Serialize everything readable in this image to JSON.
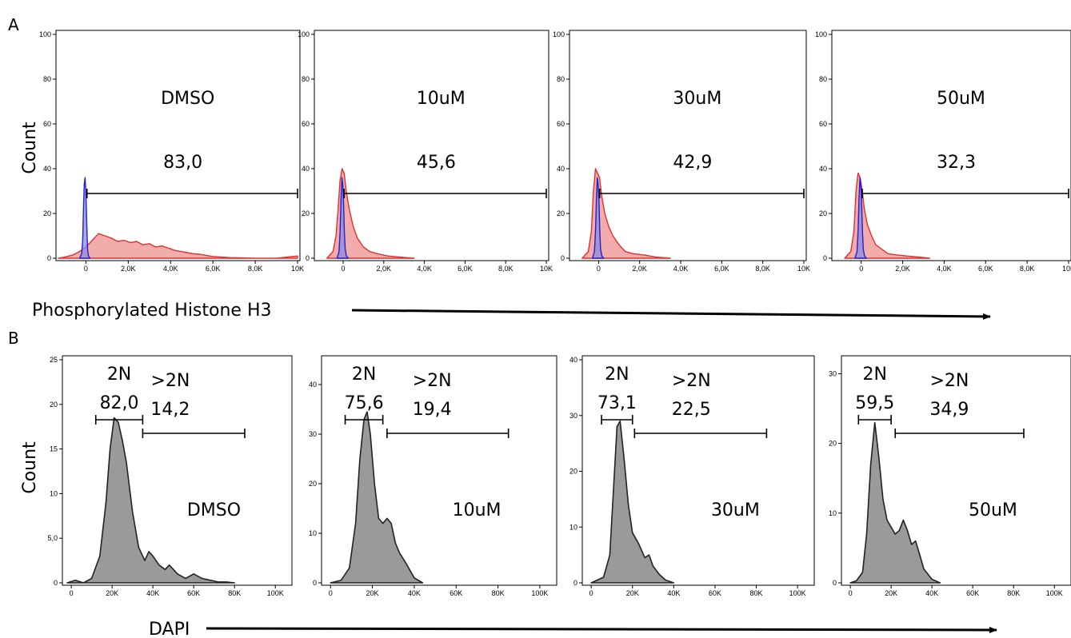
{
  "figure": {
    "panel_a_letter": "A",
    "panel_b_letter": "B",
    "panel_a_ylabel": "Count",
    "panel_b_ylabel": "Count",
    "panel_a_xlabel": "Phosphorylated Histone H3",
    "panel_b_xlabel": "DAPI"
  },
  "colors": {
    "control_fill": "#f1a3a3",
    "control_line": "#e03030",
    "isotype_fill": "#8f8ae0",
    "isotype_line": "#2222cc",
    "dapi_fill": "#9a9a9a",
    "dapi_line": "#222222"
  },
  "chart_data": [
    {
      "type": "area",
      "panel": "A",
      "condition": "DMSO",
      "gates": [
        {
          "percent": "83,0",
          "range": [
            50,
            10000
          ]
        }
      ],
      "xlim": [
        -1300,
        10000
      ],
      "ylim": [
        0,
        100
      ],
      "xticks": [
        0,
        2000,
        4000,
        6000,
        8000,
        10000
      ],
      "xtick_labels": [
        "0",
        "2,0K",
        "4,0K",
        "6,0K",
        "8,0K",
        "10K"
      ],
      "yticks": [
        0,
        20,
        40,
        60,
        80,
        100
      ],
      "ytick_labels": [
        "0",
        "20",
        "40",
        "60",
        "80",
        "100"
      ],
      "series": [
        {
          "role": "sample",
          "x": [
            -1300,
            -1000,
            -600,
            -300,
            0,
            300,
            600,
            900,
            1200,
            1500,
            1800,
            2100,
            2400,
            2700,
            3000,
            3300,
            3600,
            3900,
            4200,
            4500,
            4800,
            5100,
            5400,
            5700,
            6000,
            6400,
            6800,
            7200,
            7600,
            8000,
            9000,
            10000
          ],
          "y": [
            0,
            0.5,
            1.5,
            3,
            5,
            8,
            11,
            10,
            9,
            7.5,
            8,
            7,
            7.5,
            6,
            6.5,
            5,
            5.5,
            4.5,
            3.5,
            3,
            2.5,
            2,
            1.8,
            1.2,
            0.8,
            0.5,
            0.3,
            0.2,
            0.1,
            0,
            0,
            1
          ]
        },
        {
          "role": "isotype",
          "x": [
            -300,
            -200,
            -150,
            -120,
            -80,
            -40,
            0,
            40,
            80,
            120,
            200
          ],
          "y": [
            0,
            2,
            8,
            20,
            33,
            36,
            30,
            15,
            4,
            1,
            0
          ]
        }
      ]
    },
    {
      "type": "area",
      "panel": "A",
      "condition": "10uM",
      "gates": [
        {
          "percent": "45,6",
          "range": [
            50,
            10000
          ]
        }
      ],
      "xlim": [
        -1300,
        10000
      ],
      "ylim": [
        0,
        100
      ],
      "xticks": [
        0,
        2000,
        4000,
        6000,
        8000,
        10000
      ],
      "xtick_labels": [
        "0",
        "2,0K",
        "4,0K",
        "6,0K",
        "8,0K",
        "10K"
      ],
      "yticks": [
        0,
        20,
        40,
        60,
        80,
        100
      ],
      "ytick_labels": [
        "0",
        "20",
        "40",
        "60",
        "80",
        "100"
      ],
      "series": [
        {
          "role": "sample",
          "x": [
            -800,
            -500,
            -350,
            -250,
            -150,
            -50,
            50,
            150,
            300,
            500,
            700,
            1000,
            1300,
            1700,
            2200,
            2800,
            3500
          ],
          "y": [
            0,
            3,
            10,
            22,
            35,
            40,
            38,
            30,
            22,
            14,
            9,
            5,
            3,
            2,
            1,
            0.5,
            0
          ]
        },
        {
          "role": "isotype",
          "x": [
            -300,
            -200,
            -150,
            -100,
            -60,
            -20,
            20,
            60,
            100,
            160,
            250
          ],
          "y": [
            0,
            3,
            12,
            28,
            36,
            33,
            25,
            12,
            4,
            1,
            0
          ]
        }
      ]
    },
    {
      "type": "area",
      "panel": "A",
      "condition": "30uM",
      "gates": [
        {
          "percent": "42,9",
          "range": [
            50,
            10000
          ]
        }
      ],
      "xlim": [
        -1300,
        10000
      ],
      "ylim": [
        0,
        100
      ],
      "xticks": [
        0,
        2000,
        4000,
        6000,
        8000,
        10000
      ],
      "xtick_labels": [
        "0",
        "2,0K",
        "4,0K",
        "6,0K",
        "8,0K",
        "10K"
      ],
      "yticks": [
        0,
        20,
        40,
        60,
        80,
        100
      ],
      "ytick_labels": [
        "0",
        "20",
        "40",
        "60",
        "80",
        "100"
      ],
      "series": [
        {
          "role": "sample",
          "x": [
            -800,
            -500,
            -350,
            -250,
            -150,
            -50,
            50,
            150,
            300,
            500,
            700,
            1000,
            1300,
            1700,
            2200,
            2800,
            3500
          ],
          "y": [
            0,
            3,
            12,
            30,
            40,
            38,
            36,
            28,
            20,
            14,
            10,
            6,
            3,
            2,
            1.5,
            0.5,
            0
          ]
        },
        {
          "role": "isotype",
          "x": [
            -300,
            -200,
            -150,
            -100,
            -60,
            -20,
            20,
            60,
            100,
            160,
            250
          ],
          "y": [
            0,
            3,
            12,
            28,
            36,
            33,
            25,
            12,
            4,
            1,
            0
          ]
        }
      ]
    },
    {
      "type": "area",
      "panel": "A",
      "condition": "50uM",
      "gates": [
        {
          "percent": "32,3",
          "range": [
            50,
            10000
          ]
        }
      ],
      "xlim": [
        -1300,
        10000
      ],
      "ylim": [
        0,
        100
      ],
      "xticks": [
        0,
        2000,
        4000,
        6000,
        8000,
        10000
      ],
      "xtick_labels": [
        "0",
        "2,0K",
        "4,0K",
        "6,0K",
        "8,0K",
        "10K"
      ],
      "yticks": [
        0,
        20,
        40,
        60,
        80,
        100
      ],
      "ytick_labels": [
        "0",
        "20",
        "40",
        "60",
        "80",
        "100"
      ],
      "series": [
        {
          "role": "sample",
          "x": [
            -800,
            -500,
            -350,
            -250,
            -150,
            -50,
            50,
            150,
            300,
            500,
            700,
            1000,
            1300,
            1700,
            2200,
            2800,
            3300
          ],
          "y": [
            0,
            3,
            12,
            30,
            38,
            36,
            30,
            22,
            15,
            10,
            6,
            4,
            2,
            1.5,
            1,
            0.5,
            0
          ]
        },
        {
          "role": "isotype",
          "x": [
            -300,
            -200,
            -150,
            -100,
            -60,
            -20,
            20,
            60,
            100,
            160,
            250
          ],
          "y": [
            0,
            3,
            12,
            28,
            36,
            33,
            25,
            12,
            4,
            1,
            0
          ]
        }
      ]
    },
    {
      "type": "area",
      "panel": "B",
      "condition": "DMSO",
      "gates": [
        {
          "label": "2N",
          "percent": "82,0",
          "range": [
            12000,
            35000
          ]
        },
        {
          "label": ">2N",
          "percent": "14,2",
          "range": [
            35000,
            85000
          ]
        }
      ],
      "xlim": [
        -2000,
        105000
      ],
      "ylim": [
        0,
        25
      ],
      "xticks": [
        0,
        20000,
        40000,
        60000,
        80000,
        100000
      ],
      "xtick_labels": [
        "0",
        "20K",
        "40K",
        "60K",
        "80K",
        "100K"
      ],
      "yticks": [
        0,
        5,
        10,
        15,
        20,
        25
      ],
      "ytick_labels": [
        "0",
        "5,0",
        "10",
        "15",
        "20",
        "25"
      ],
      "series": [
        {
          "role": "sample",
          "x": [
            -2000,
            2000,
            6000,
            10000,
            14000,
            17000,
            19000,
            21000,
            23000,
            25000,
            27000,
            30000,
            33000,
            36000,
            38000,
            40000,
            43000,
            46000,
            48000,
            52000,
            56000,
            60000,
            64000,
            68000,
            72000,
            76000,
            80000
          ],
          "y": [
            0,
            0.3,
            0,
            0.5,
            3,
            9,
            15,
            18.5,
            18,
            16,
            13.5,
            8,
            4,
            2.5,
            3.5,
            3,
            2,
            1.5,
            2,
            1,
            0.5,
            1,
            0.5,
            0.3,
            0.1,
            0.1,
            0
          ]
        }
      ]
    },
    {
      "type": "area",
      "panel": "B",
      "condition": "10uM",
      "gates": [
        {
          "label": "2N",
          "percent": "75,6",
          "range": [
            7000,
            25000
          ]
        },
        {
          "label": ">2N",
          "percent": "19,4",
          "range": [
            27000,
            85000
          ]
        }
      ],
      "xlim": [
        -2000,
        105000
      ],
      "ylim": [
        0,
        45
      ],
      "xticks": [
        0,
        20000,
        40000,
        60000,
        80000,
        100000
      ],
      "xtick_labels": [
        "0",
        "20K",
        "40K",
        "60K",
        "80K",
        "100K"
      ],
      "yticks": [
        0,
        10,
        20,
        30,
        40
      ],
      "ytick_labels": [
        "0",
        "10",
        "20",
        "30",
        "40"
      ],
      "series": [
        {
          "role": "sample",
          "x": [
            0,
            5000,
            9000,
            12000,
            14000,
            16000,
            17500,
            19000,
            21000,
            23000,
            25000,
            27000,
            29000,
            31000,
            33000,
            36000,
            40000,
            44000
          ],
          "y": [
            0,
            0.5,
            3,
            12,
            25,
            33,
            34.5,
            30,
            20,
            13,
            12,
            13,
            12,
            8,
            6,
            4,
            1,
            0
          ]
        }
      ]
    },
    {
      "type": "area",
      "panel": "B",
      "condition": "30uM",
      "gates": [
        {
          "label": "2N",
          "percent": "73,1",
          "range": [
            5000,
            20000
          ]
        },
        {
          "label": ">2N",
          "percent": "22,5",
          "range": [
            21000,
            85000
          ]
        }
      ],
      "xlim": [
        -2000,
        105000
      ],
      "ylim": [
        0,
        40
      ],
      "xticks": [
        0,
        20000,
        40000,
        60000,
        80000,
        100000
      ],
      "xtick_labels": [
        "0",
        "20K",
        "40K",
        "60K",
        "80K",
        "100K"
      ],
      "yticks": [
        0,
        10,
        20,
        30,
        40
      ],
      "ytick_labels": [
        "0",
        "10",
        "20",
        "30",
        "40"
      ],
      "series": [
        {
          "role": "sample",
          "x": [
            0,
            3000,
            6000,
            9000,
            11000,
            12500,
            14000,
            16000,
            18000,
            20000,
            23000,
            26000,
            28000,
            30000,
            33000,
            36000,
            40000
          ],
          "y": [
            0,
            0.5,
            1,
            5,
            18,
            28,
            29,
            22,
            14,
            9,
            7,
            4.5,
            5,
            3,
            1.5,
            0.5,
            0
          ]
        }
      ]
    },
    {
      "type": "area",
      "panel": "B",
      "condition": "50uM",
      "gates": [
        {
          "label": "2N",
          "percent": "59,5",
          "range": [
            4000,
            20000
          ]
        },
        {
          "label": ">2N",
          "percent": "34,9",
          "range": [
            22000,
            85000
          ]
        }
      ],
      "xlim": [
        -2000,
        105000
      ],
      "ylim": [
        0,
        32
      ],
      "xticks": [
        0,
        20000,
        40000,
        60000,
        80000,
        100000
      ],
      "xtick_labels": [
        "0",
        "20K",
        "40K",
        "60K",
        "80K",
        "100K"
      ],
      "yticks": [
        0,
        10,
        20,
        30
      ],
      "ytick_labels": [
        "0",
        "10",
        "20",
        "30"
      ],
      "series": [
        {
          "role": "sample",
          "x": [
            0,
            3000,
            6000,
            8000,
            10000,
            12000,
            14000,
            16000,
            18000,
            20000,
            22000,
            24000,
            26000,
            28000,
            30000,
            32000,
            34000,
            36000,
            40000,
            44000
          ],
          "y": [
            0,
            0.3,
            1.5,
            7,
            17,
            23,
            18,
            12,
            9,
            8,
            7,
            7.5,
            9,
            7.5,
            5.5,
            6,
            4,
            2,
            0.5,
            0
          ]
        }
      ]
    }
  ]
}
